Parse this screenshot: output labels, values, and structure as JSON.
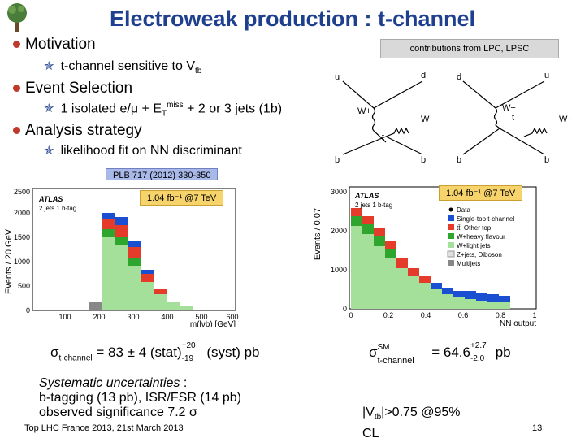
{
  "slide": {
    "title": "Electroweak production : t-channel",
    "contrib": "contributions from LPC, LPSC",
    "sections": [
      {
        "heading": "Motivation",
        "item_text": "t-channel sensitive to V",
        "item_sub": "tb"
      },
      {
        "heading": "Event Selection",
        "item_pre": "1 isolated e/μ + E",
        "item_sub": "T",
        "item_sup": "miss",
        "item_post": " + 2 or 3 jets (1b)"
      },
      {
        "heading": "Analysis strategy",
        "item_text": "likelihood fit on NN discriminant"
      }
    ],
    "plb": "PLB 717 (2012) 330-350",
    "feyn": {
      "u": "u",
      "d": "d",
      "b": "b",
      "t": "t",
      "w_plus": "W+",
      "w_minus": "W−"
    },
    "plot_left": {
      "ylabel": "Events / 20 GeV",
      "xlabel": "m(lνb) [GeV]",
      "atlas": "ATLAS",
      "desc": "2 jets 1 b-tag",
      "lumi": "1.04 fb⁻¹ @7 TeV",
      "yticks": [
        "0",
        "500",
        "1000",
        "1500",
        "2000",
        "2500"
      ],
      "xticks": [
        "100",
        "200",
        "300",
        "400",
        "500",
        "600"
      ]
    },
    "plot_right": {
      "ylabel": "Events / 0.07",
      "xlabel": "NN output",
      "atlas": "ATLAS",
      "desc": "2 jets 1 b-tag",
      "lumi": "1.04 fb⁻¹ @7 TeV",
      "yticks": [
        "0",
        "1000",
        "2000",
        "3000"
      ],
      "xticks": [
        "0",
        "0.2",
        "0.4",
        "0.6",
        "0.8",
        "1"
      ],
      "legend": [
        "Data",
        "Single-top t-channel",
        "tt̄, Other top",
        "W+heavy flavour",
        "W+light jets",
        "Z+jets, Diboson",
        "Multijets"
      ]
    },
    "legend_colors": [
      "#000000",
      "#1b4fd1",
      "#e53b2b",
      "#2ea62e",
      "#a5e09a",
      "#e0e0e0",
      "#888888"
    ],
    "xsec_left": {
      "sigma": "σ",
      "sub": "t-channel",
      "val": " = 83 ± 4 (stat)",
      "sup": "+20",
      "sub2": "-19",
      "post": " (syst) pb"
    },
    "xsec_right": {
      "sigma": "σ",
      "sup_sm": "SM",
      "sub": "t-channel",
      "val": " = 64.6",
      "sup": "+2.7",
      "sub2": "-2.0",
      "post": " pb"
    },
    "systematics": {
      "title": "Systematic uncertainties",
      "colon": " :",
      "line2": "b-tagging (13 pb), ISR/FSR (14 pb)",
      "line3": "observed significance 7.2 σ"
    },
    "vtb": {
      "pre": "|V",
      "sub": "tb",
      "post": "|>0.75 @95%",
      "line2": "CL"
    },
    "footer": {
      "left": "Top LHC France 2013, 21st March 2013",
      "page": "13"
    }
  }
}
